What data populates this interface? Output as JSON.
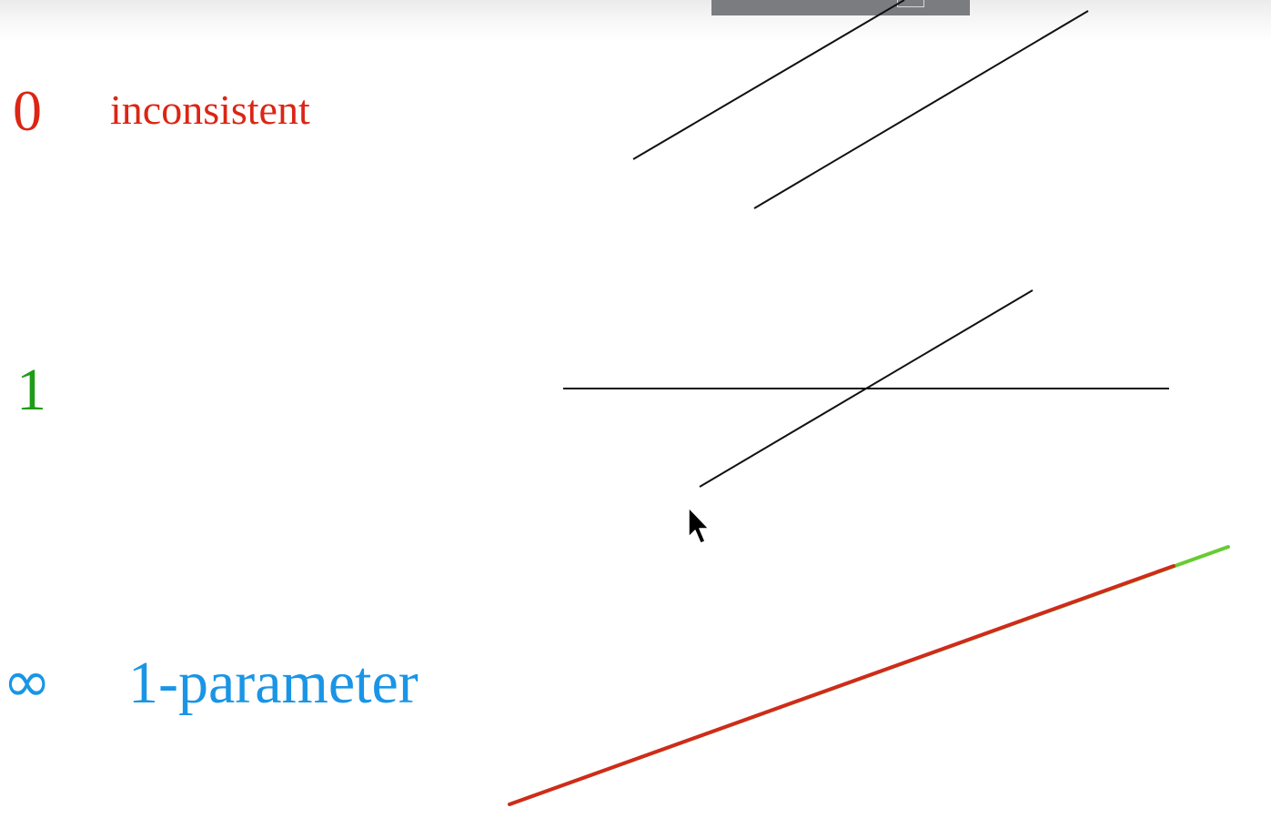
{
  "rows": [
    {
      "count": "0",
      "description": "inconsistent"
    },
    {
      "count": "1"
    },
    {
      "count": "∞",
      "description": "1-parameter"
    }
  ],
  "colors": {
    "zero": "#dc2514",
    "one": "#1f9b18",
    "infinity": "#1a95e6",
    "line": "#111111",
    "overlap_red": "#d12a1c",
    "overlap_green": "#66cc33",
    "overlay_bar": "#7b7c7f"
  },
  "icons": [
    "mouse-pointer-icon"
  ]
}
